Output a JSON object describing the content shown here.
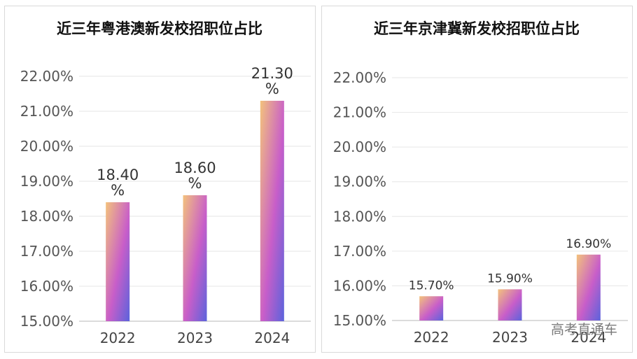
{
  "watermark": "高考直通车",
  "chart_data": [
    {
      "type": "bar",
      "title": "近三年粤港澳新发校招职位占比",
      "categories": [
        "2022",
        "2023",
        "2024"
      ],
      "values": [
        18.4,
        18.6,
        21.3
      ],
      "value_labels": [
        "18.40\n%",
        "18.60\n%",
        "21.30\n%"
      ],
      "ylim": [
        15,
        22
      ],
      "yticks": [
        "15.00%",
        "16.00%",
        "17.00%",
        "18.00%",
        "19.00%",
        "20.00%",
        "21.00%",
        "22.00%"
      ],
      "grid": true,
      "colors": {
        "gradient_start": "#f3c27c",
        "gradient_mid": "#c85ec9",
        "gradient_end": "#5b63dc"
      }
    },
    {
      "type": "bar",
      "title": "近三年京津冀新发校招职位占比",
      "categories": [
        "2022",
        "2023",
        "2024"
      ],
      "values": [
        15.7,
        15.9,
        16.9
      ],
      "value_labels": [
        "15.70%",
        "15.90%",
        "16.90%"
      ],
      "ylim": [
        15,
        22
      ],
      "yticks": [
        "15.00%",
        "16.00%",
        "17.00%",
        "18.00%",
        "19.00%",
        "20.00%",
        "21.00%",
        "22.00%"
      ],
      "grid": true,
      "colors": {
        "gradient_start": "#f3c27c",
        "gradient_mid": "#c85ec9",
        "gradient_end": "#5b63dc"
      }
    }
  ]
}
